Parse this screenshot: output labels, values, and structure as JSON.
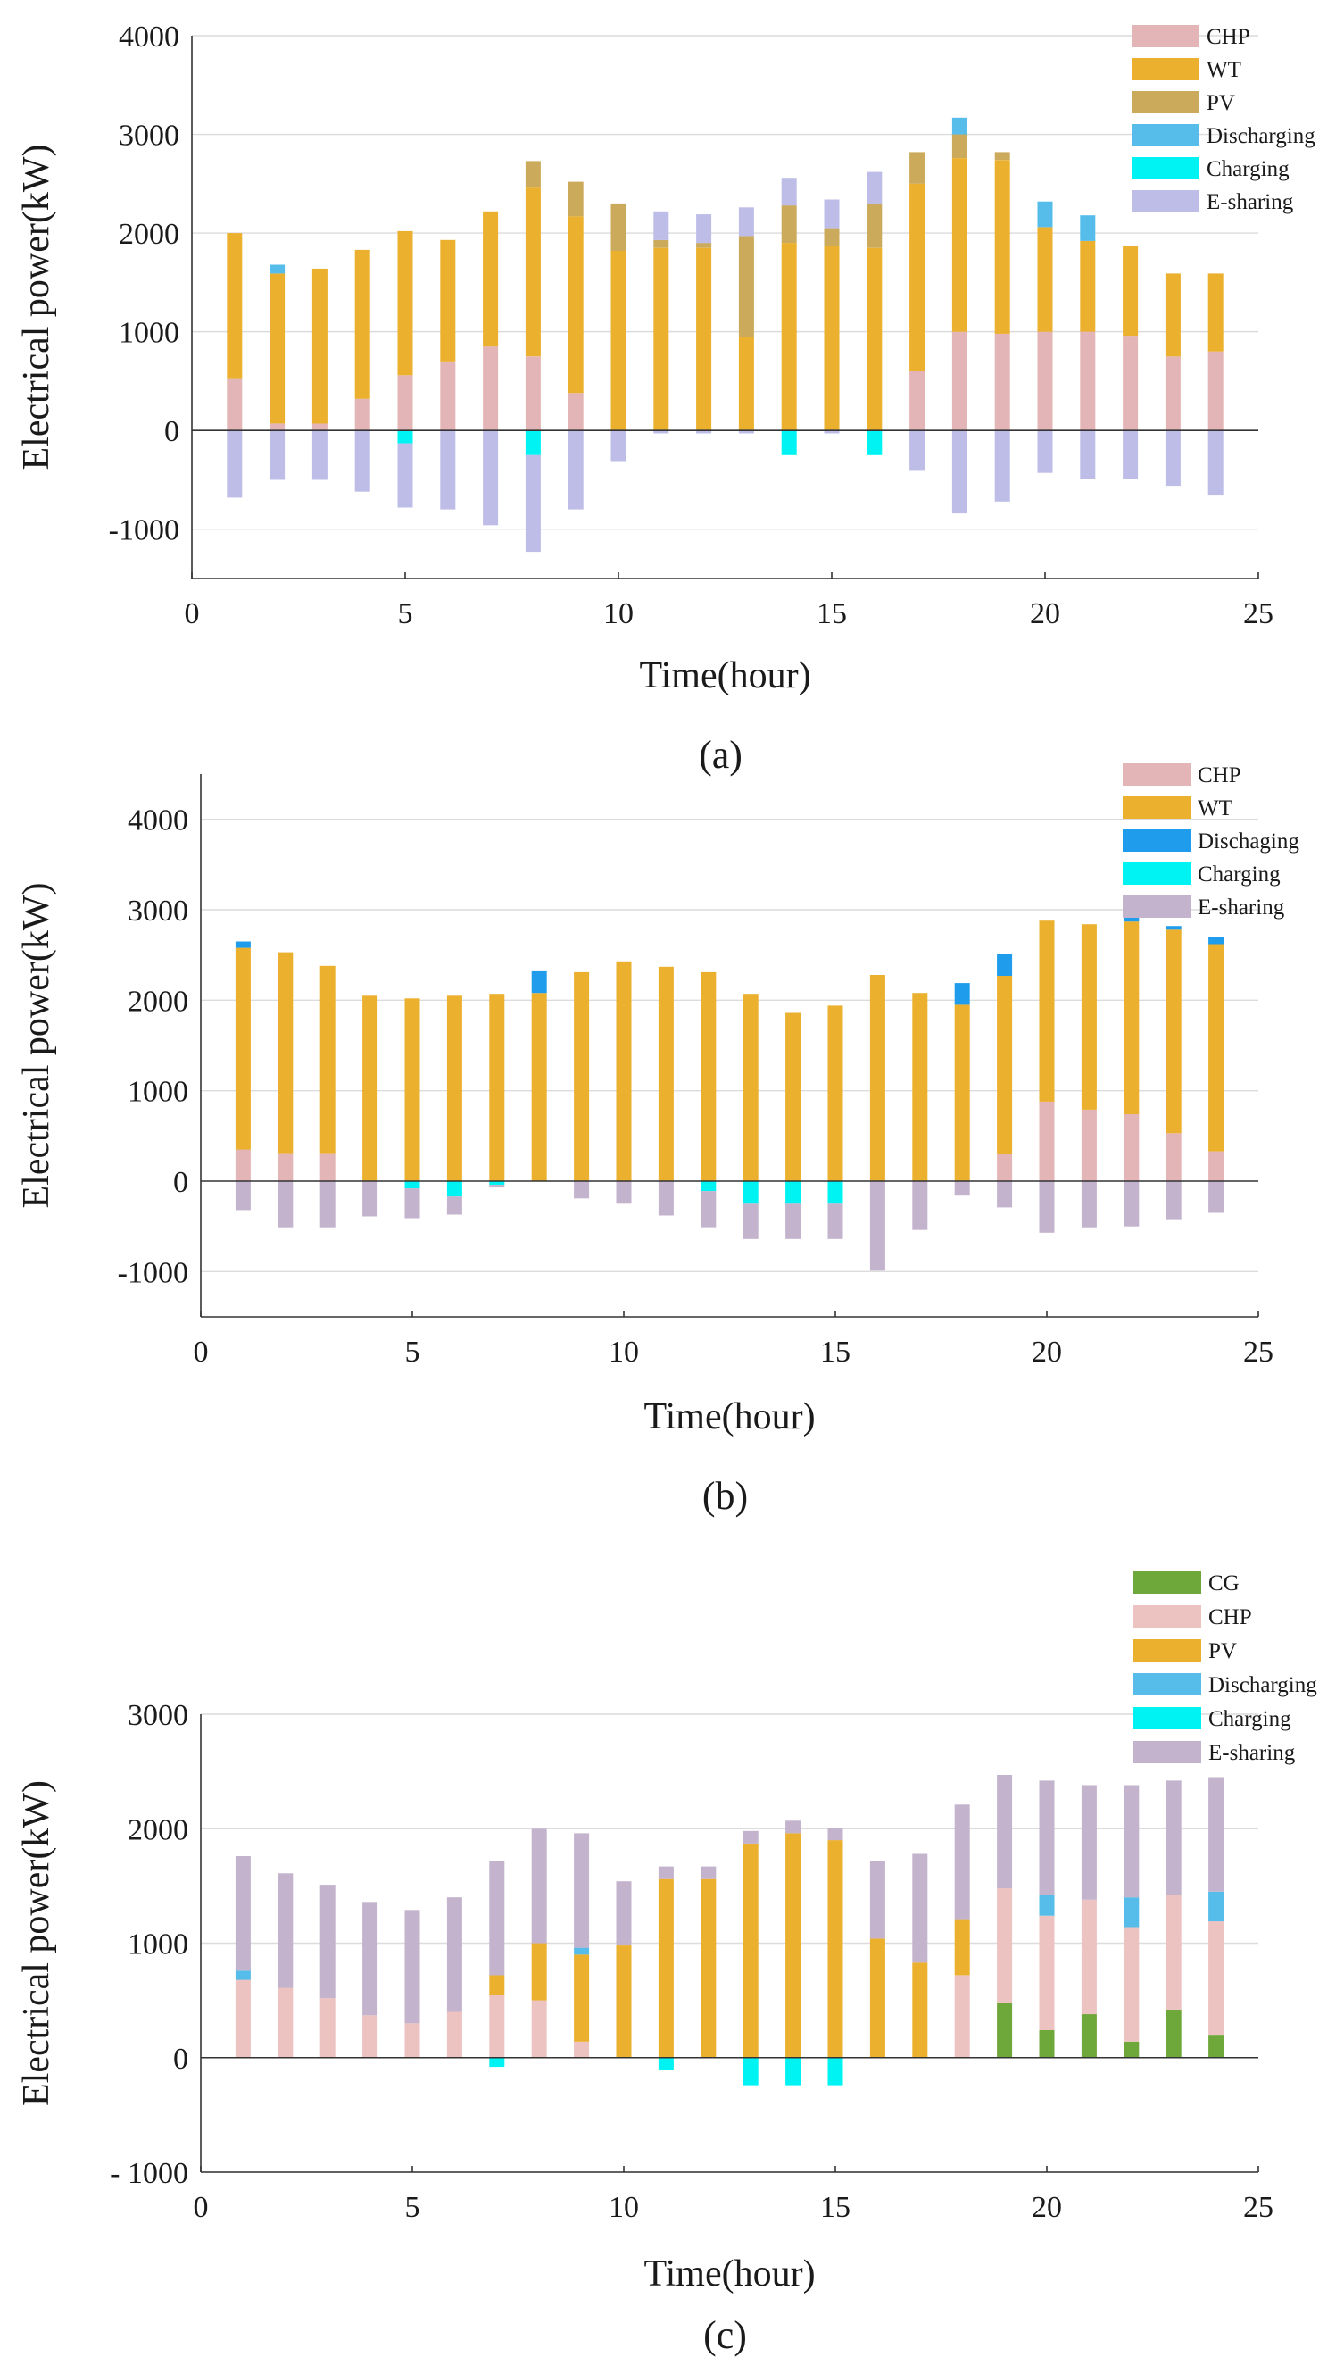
{
  "chart_data": [
    {
      "type": "bar",
      "stacked": true,
      "id": "a",
      "caption": "(a)",
      "xlabel": "Time(hour)",
      "ylabel": "Electrical power(kW)",
      "xlim": [
        0,
        25
      ],
      "ylim": [
        -1500,
        4000
      ],
      "xticks": [
        0,
        5,
        10,
        15,
        20,
        25
      ],
      "yticks": [
        -1000,
        0,
        1000,
        2000,
        3000,
        4000
      ],
      "ytick_labels": [
        "-1000",
        "0",
        "1000",
        "2000",
        "3000",
        "4000"
      ],
      "categories": [
        1,
        2,
        3,
        4,
        5,
        6,
        7,
        8,
        9,
        10,
        11,
        12,
        13,
        14,
        15,
        16,
        17,
        18,
        19,
        20,
        21,
        22,
        23,
        24
      ],
      "positive_series": [
        "CHP",
        "WT",
        "PV",
        "Discharging",
        "E-sharing"
      ],
      "negative_series": [
        "Charging",
        "E-sharing"
      ],
      "legend": [
        {
          "name": "CHP",
          "color": "#e3b5b6"
        },
        {
          "name": "WT",
          "color": "#ebb02d"
        },
        {
          "name": "PV",
          "color": "#ccaa5b"
        },
        {
          "name": "Discharging",
          "color": "#56bdea"
        },
        {
          "name": "Charging",
          "color": "#00f3f3"
        },
        {
          "name": "E-sharing",
          "color": "#bdbde8"
        }
      ],
      "series": [
        {
          "name": "CHP",
          "color": "#e3b5b6",
          "values": [
            530,
            70,
            70,
            320,
            560,
            700,
            850,
            750,
            380,
            0,
            0,
            0,
            0,
            0,
            0,
            0,
            600,
            1000,
            980,
            1000,
            1000,
            960,
            750,
            800
          ]
        },
        {
          "name": "WT",
          "color": "#ebb02d",
          "values": [
            1470,
            1520,
            1570,
            1510,
            1460,
            1230,
            1370,
            1710,
            1790,
            1820,
            1850,
            1850,
            950,
            1900,
            1870,
            1850,
            1900,
            1760,
            1760,
            1060,
            920,
            910,
            840,
            790
          ]
        },
        {
          "name": "PV",
          "color": "#ccaa5b",
          "values": [
            0,
            0,
            0,
            0,
            0,
            0,
            0,
            270,
            350,
            480,
            80,
            50,
            1020,
            380,
            180,
            450,
            320,
            240,
            80,
            0,
            0,
            0,
            0,
            0
          ]
        },
        {
          "name": "Discharging",
          "color": "#56bdea",
          "values": [
            0,
            90,
            0,
            0,
            0,
            0,
            0,
            0,
            0,
            0,
            0,
            0,
            0,
            0,
            0,
            0,
            0,
            170,
            0,
            260,
            260,
            0,
            0,
            0
          ]
        },
        {
          "name": "E-sharing",
          "color": "#bdbde8",
          "values": [
            0,
            0,
            0,
            0,
            0,
            0,
            0,
            0,
            0,
            0,
            290,
            290,
            290,
            280,
            290,
            320,
            0,
            0,
            0,
            0,
            0,
            0,
            0,
            0
          ]
        },
        {
          "name": "Charging",
          "color": "#00f3f3",
          "negative": true,
          "values": [
            0,
            0,
            0,
            0,
            -130,
            0,
            0,
            -250,
            0,
            0,
            0,
            0,
            0,
            -250,
            0,
            -250,
            0,
            0,
            0,
            0,
            0,
            0,
            0,
            0
          ]
        },
        {
          "name": "E-sharing",
          "color": "#bdbde8",
          "negative": true,
          "values": [
            -680,
            -500,
            -500,
            -620,
            -650,
            -800,
            -960,
            -980,
            -800,
            -310,
            -30,
            -30,
            -30,
            0,
            -30,
            0,
            -400,
            -840,
            -720,
            -430,
            -490,
            -490,
            -560,
            -650
          ]
        }
      ]
    },
    {
      "type": "bar",
      "stacked": true,
      "id": "b",
      "caption": "(b)",
      "xlabel": "Time(hour)",
      "ylabel": "Electrical power(kW)",
      "xlim": [
        0,
        25
      ],
      "ylim": [
        -1500,
        4500
      ],
      "xticks": [
        0,
        5,
        10,
        15,
        20,
        25
      ],
      "yticks": [
        -1000,
        0,
        1000,
        2000,
        3000,
        4000
      ],
      "ytick_labels": [
        "-1000",
        "0",
        "1000",
        "2000",
        "3000",
        "4000"
      ],
      "categories": [
        1,
        2,
        3,
        4,
        5,
        6,
        7,
        8,
        9,
        10,
        11,
        12,
        13,
        14,
        15,
        16,
        17,
        18,
        19,
        20,
        21,
        22,
        23,
        24
      ],
      "positive_series": [
        "CHP",
        "WT",
        "Dischaging"
      ],
      "negative_series": [
        "Charging",
        "E-sharing"
      ],
      "legend": [
        {
          "name": "CHP",
          "color": "#e3b5b6"
        },
        {
          "name": "WT",
          "color": "#ebb02d"
        },
        {
          "name": "Dischaging",
          "color": "#1f9ceb"
        },
        {
          "name": "Charging",
          "color": "#00f3f3"
        },
        {
          "name": "E-sharing",
          "color": "#c3b3cd"
        }
      ],
      "series": [
        {
          "name": "CHP",
          "color": "#e3b5b6",
          "values": [
            350,
            310,
            310,
            0,
            0,
            0,
            0,
            0,
            0,
            0,
            0,
            0,
            0,
            0,
            0,
            0,
            0,
            0,
            300,
            880,
            790,
            740,
            530,
            330
          ]
        },
        {
          "name": "WT",
          "color": "#ebb02d",
          "values": [
            2230,
            2220,
            2070,
            2050,
            2020,
            2050,
            2070,
            2080,
            2310,
            2430,
            2370,
            2310,
            2070,
            1860,
            1940,
            2280,
            2080,
            1950,
            1970,
            2000,
            2050,
            2130,
            2250,
            2290
          ]
        },
        {
          "name": "Dischaging",
          "color": "#1f9ceb",
          "values": [
            70,
            0,
            0,
            0,
            0,
            0,
            0,
            240,
            0,
            0,
            0,
            0,
            0,
            0,
            0,
            0,
            0,
            240,
            240,
            0,
            0,
            60,
            40,
            80
          ]
        },
        {
          "name": "Charging",
          "color": "#00f3f3",
          "negative": true,
          "values": [
            0,
            0,
            0,
            0,
            -80,
            -170,
            -40,
            0,
            0,
            0,
            0,
            -110,
            -250,
            -250,
            -250,
            0,
            0,
            0,
            0,
            0,
            0,
            0,
            0,
            0
          ]
        },
        {
          "name": "E-sharing",
          "color": "#c3b3cd",
          "negative": true,
          "values": [
            -320,
            -510,
            -510,
            -390,
            -330,
            -200,
            -30,
            0,
            -190,
            -250,
            -380,
            -400,
            -390,
            -390,
            -390,
            -990,
            -540,
            -160,
            -290,
            -570,
            -510,
            -500,
            -420,
            -350
          ]
        }
      ]
    },
    {
      "type": "bar",
      "stacked": true,
      "id": "c",
      "caption": "(c)",
      "xlabel": "Time(hour)",
      "ylabel": "Electrical power(kW)",
      "xlim": [
        0,
        25
      ],
      "ylim": [
        -1000,
        3000
      ],
      "xticks": [
        0,
        5,
        10,
        15,
        20,
        25
      ],
      "yticks": [
        -1000,
        0,
        1000,
        2000,
        3000
      ],
      "ytick_labels": [
        "- 1000",
        "0",
        "1000",
        "2000",
        "3000"
      ],
      "categories": [
        1,
        2,
        3,
        4,
        5,
        6,
        7,
        8,
        9,
        10,
        11,
        12,
        13,
        14,
        15,
        16,
        17,
        18,
        19,
        20,
        21,
        22,
        23,
        24
      ],
      "positive_series": [
        "CG",
        "CHP",
        "PV",
        "Discharging",
        "E-sharing"
      ],
      "negative_series": [
        "Charging"
      ],
      "legend": [
        {
          "name": "CG",
          "color": "#6fa83a"
        },
        {
          "name": "CHP",
          "color": "#ecc3c1"
        },
        {
          "name": "PV",
          "color": "#ebb02d"
        },
        {
          "name": "Discharging",
          "color": "#56bdea"
        },
        {
          "name": "Charging",
          "color": "#00f3f3"
        },
        {
          "name": "E-sharing",
          "color": "#c3b3cd"
        }
      ],
      "series": [
        {
          "name": "CG",
          "color": "#6fa83a",
          "values": [
            0,
            0,
            0,
            0,
            0,
            0,
            0,
            0,
            0,
            0,
            0,
            0,
            0,
            0,
            0,
            0,
            0,
            0,
            480,
            240,
            380,
            140,
            420,
            200
          ]
        },
        {
          "name": "CHP",
          "color": "#ecc3c1",
          "values": [
            680,
            610,
            520,
            370,
            300,
            400,
            550,
            500,
            140,
            0,
            0,
            0,
            0,
            0,
            0,
            0,
            0,
            720,
            1000,
            1000,
            1000,
            1000,
            1000,
            990
          ]
        },
        {
          "name": "PV",
          "color": "#ebb02d",
          "values": [
            0,
            0,
            0,
            0,
            0,
            0,
            170,
            500,
            760,
            980,
            1560,
            1560,
            1870,
            1960,
            1900,
            1040,
            830,
            490,
            0,
            0,
            0,
            0,
            0,
            0
          ]
        },
        {
          "name": "Discharging",
          "color": "#56bdea",
          "values": [
            80,
            0,
            0,
            0,
            0,
            0,
            0,
            0,
            60,
            0,
            0,
            0,
            0,
            0,
            0,
            0,
            0,
            0,
            0,
            180,
            0,
            260,
            0,
            260
          ]
        },
        {
          "name": "E-sharing",
          "color": "#c3b3cd",
          "values": [
            1000,
            1000,
            990,
            990,
            990,
            1000,
            1000,
            1000,
            1000,
            560,
            110,
            110,
            110,
            110,
            110,
            680,
            950,
            1000,
            990,
            1000,
            1000,
            980,
            1000,
            1000
          ]
        },
        {
          "name": "Charging",
          "color": "#00f3f3",
          "negative": true,
          "values": [
            0,
            0,
            0,
            0,
            0,
            0,
            -80,
            0,
            0,
            0,
            -110,
            0,
            -240,
            -240,
            -240,
            0,
            0,
            0,
            0,
            0,
            0,
            0,
            0,
            0
          ]
        }
      ]
    }
  ]
}
